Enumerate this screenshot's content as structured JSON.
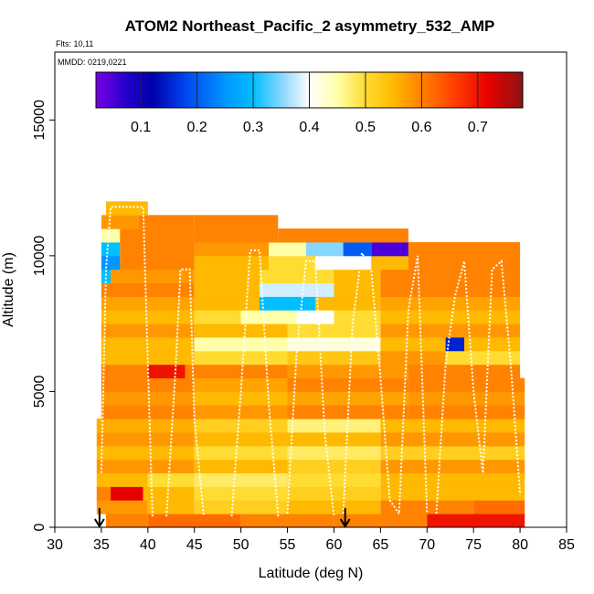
{
  "chart_data": {
    "type": "heatmap",
    "title": "ATOM2 Northeast_Pacific_2 asymmetry_532_AMP",
    "flights_label": "Flts: 10,11",
    "mmdd_label": "MMDD: 0219,0221",
    "xlabel": "Latitude (deg N)",
    "ylabel": "Altitude (m)",
    "xlim": [
      30,
      85
    ],
    "ylim": [
      0,
      17500
    ],
    "x_ticks": [
      "30",
      "35",
      "40",
      "45",
      "50",
      "55",
      "60",
      "65",
      "70",
      "75",
      "80",
      "85"
    ],
    "y_ticks": [
      "0",
      "5000",
      "10000",
      "15000"
    ],
    "colorbar": {
      "range": [
        0.02,
        0.78
      ],
      "tick_labels": [
        "0.1",
        "0.2",
        "0.3",
        "0.4",
        "0.5",
        "0.6",
        "0.7"
      ],
      "tick_values": [
        0.1,
        0.2,
        0.3,
        0.4,
        0.5,
        0.6,
        0.7
      ]
    },
    "arrows_lat": [
      34.8,
      61.2
    ],
    "bands": [
      {
        "alt": [
          0,
          500
        ],
        "segments": [
          [
            35.5,
            40,
            0.6
          ],
          [
            40,
            50,
            0.62
          ],
          [
            50,
            60,
            0.6
          ],
          [
            60,
            70,
            0.6
          ],
          [
            70,
            80.5,
            0.7
          ]
        ]
      },
      {
        "alt": [
          500,
          1000
        ],
        "segments": [
          [
            34.5,
            40,
            0.58
          ],
          [
            40,
            45,
            0.55
          ],
          [
            45,
            55,
            0.52
          ],
          [
            55,
            65,
            0.55
          ],
          [
            65,
            75,
            0.6
          ],
          [
            75,
            80.5,
            0.62
          ]
        ]
      },
      {
        "alt": [
          1000,
          1500
        ],
        "segments": [
          [
            34.5,
            36,
            0.6
          ],
          [
            36,
            39.5,
            0.72
          ],
          [
            39.5,
            45,
            0.55
          ],
          [
            45,
            55,
            0.5
          ],
          [
            55,
            65,
            0.52
          ],
          [
            65,
            80.5,
            0.55
          ]
        ]
      },
      {
        "alt": [
          1500,
          2000
        ],
        "segments": [
          [
            34.5,
            40,
            0.55
          ],
          [
            40,
            45,
            0.5
          ],
          [
            45,
            55,
            0.48
          ],
          [
            55,
            65,
            0.5
          ],
          [
            65,
            80.5,
            0.55
          ]
        ]
      },
      {
        "alt": [
          2000,
          2500
        ],
        "segments": [
          [
            34.5,
            45,
            0.58
          ],
          [
            45,
            55,
            0.55
          ],
          [
            55,
            65,
            0.52
          ],
          [
            65,
            80.5,
            0.58
          ]
        ]
      },
      {
        "alt": [
          2500,
          3000
        ],
        "segments": [
          [
            34.5,
            45,
            0.55
          ],
          [
            45,
            55,
            0.5
          ],
          [
            55,
            65,
            0.48
          ],
          [
            65,
            80.5,
            0.52
          ]
        ]
      },
      {
        "alt": [
          3000,
          3500
        ],
        "segments": [
          [
            34.5,
            45,
            0.58
          ],
          [
            45,
            55,
            0.55
          ],
          [
            55,
            65,
            0.55
          ],
          [
            65,
            80.5,
            0.58
          ]
        ]
      },
      {
        "alt": [
          3500,
          4000
        ],
        "segments": [
          [
            34.5,
            45,
            0.56
          ],
          [
            45,
            55,
            0.52
          ],
          [
            55,
            65,
            0.47
          ],
          [
            65,
            80.5,
            0.55
          ]
        ]
      },
      {
        "alt": [
          4000,
          4500
        ],
        "segments": [
          [
            35,
            45,
            0.6
          ],
          [
            45,
            55,
            0.58
          ],
          [
            55,
            68,
            0.6
          ],
          [
            68,
            80.5,
            0.6
          ]
        ]
      },
      {
        "alt": [
          4500,
          5000
        ],
        "segments": [
          [
            35,
            45,
            0.58
          ],
          [
            45,
            55,
            0.55
          ],
          [
            55,
            68,
            0.57
          ],
          [
            68,
            80.5,
            0.58
          ]
        ]
      },
      {
        "alt": [
          5000,
          5500
        ],
        "segments": [
          [
            35,
            45,
            0.6
          ],
          [
            45,
            55,
            0.57
          ],
          [
            55,
            68,
            0.6
          ],
          [
            68,
            80.5,
            0.6
          ]
        ]
      },
      {
        "alt": [
          5500,
          6000
        ],
        "segments": [
          [
            35,
            40,
            0.6
          ],
          [
            40,
            44,
            0.7
          ],
          [
            44,
            55,
            0.6
          ],
          [
            55,
            68,
            0.58
          ],
          [
            68,
            80,
            0.6
          ]
        ]
      },
      {
        "alt": [
          6000,
          6500
        ],
        "segments": [
          [
            35,
            45,
            0.55
          ],
          [
            45,
            55,
            0.5
          ],
          [
            55,
            65,
            0.53
          ],
          [
            65,
            72,
            0.58
          ],
          [
            72,
            80,
            0.5
          ]
        ]
      },
      {
        "alt": [
          6500,
          7000
        ],
        "segments": [
          [
            35,
            45,
            0.55
          ],
          [
            45,
            55,
            0.45
          ],
          [
            55,
            65,
            0.42
          ],
          [
            65,
            72,
            0.55
          ],
          [
            72,
            74,
            0.15
          ],
          [
            74,
            80,
            0.55
          ]
        ]
      },
      {
        "alt": [
          7000,
          7500
        ],
        "segments": [
          [
            35,
            45,
            0.58
          ],
          [
            45,
            55,
            0.55
          ],
          [
            55,
            65,
            0.5
          ],
          [
            65,
            80,
            0.58
          ]
        ]
      },
      {
        "alt": [
          7500,
          8000
        ],
        "segments": [
          [
            35,
            45,
            0.55
          ],
          [
            45,
            50,
            0.5
          ],
          [
            50,
            56,
            0.45
          ],
          [
            56,
            60,
            0.4
          ],
          [
            60,
            65,
            0.5
          ],
          [
            65,
            80,
            0.55
          ]
        ]
      },
      {
        "alt": [
          8000,
          8500
        ],
        "segments": [
          [
            35,
            45,
            0.57
          ],
          [
            45,
            52,
            0.55
          ],
          [
            52,
            58,
            0.3
          ],
          [
            58,
            65,
            0.55
          ],
          [
            65,
            80,
            0.57
          ]
        ]
      },
      {
        "alt": [
          8500,
          9000
        ],
        "segments": [
          [
            35,
            45,
            0.6
          ],
          [
            45,
            52,
            0.55
          ],
          [
            52,
            60,
            0.38
          ],
          [
            60,
            65,
            0.55
          ],
          [
            65,
            80,
            0.6
          ]
        ]
      },
      {
        "alt": [
          9000,
          9500
        ],
        "segments": [
          [
            35,
            36,
            0.3
          ],
          [
            36,
            45,
            0.58
          ],
          [
            45,
            52,
            0.55
          ],
          [
            52,
            60,
            0.5
          ],
          [
            60,
            65,
            0.55
          ],
          [
            65,
            80,
            0.6
          ]
        ]
      },
      {
        "alt": [
          9500,
          10000
        ],
        "segments": [
          [
            35,
            37,
            0.25
          ],
          [
            37,
            45,
            0.6
          ],
          [
            45,
            53,
            0.55
          ],
          [
            53,
            58,
            0.5
          ],
          [
            58,
            64,
            0.4
          ],
          [
            64,
            68,
            0.55
          ],
          [
            68,
            80,
            0.6
          ]
        ]
      },
      {
        "alt": [
          10000,
          10500
        ],
        "segments": [
          [
            35,
            37,
            0.3
          ],
          [
            37,
            45,
            0.6
          ],
          [
            45,
            53,
            0.58
          ],
          [
            53,
            57,
            0.45
          ],
          [
            57,
            61,
            0.35
          ],
          [
            61,
            64,
            0.2
          ],
          [
            64,
            68,
            0.05
          ],
          [
            68,
            80,
            0.6
          ]
        ]
      },
      {
        "alt": [
          10500,
          11000
        ],
        "segments": [
          [
            35,
            37,
            0.45
          ],
          [
            37,
            45,
            0.6
          ],
          [
            45,
            54,
            0.6
          ],
          [
            54,
            68,
            0.6
          ]
        ]
      },
      {
        "alt": [
          11000,
          11500
        ],
        "segments": [
          [
            35,
            39,
            0.58
          ],
          [
            39,
            45,
            0.6
          ],
          [
            45,
            54,
            0.6
          ]
        ]
      },
      {
        "alt": [
          11500,
          12000
        ],
        "segments": [
          [
            35.5,
            40,
            0.55
          ]
        ]
      }
    ]
  }
}
